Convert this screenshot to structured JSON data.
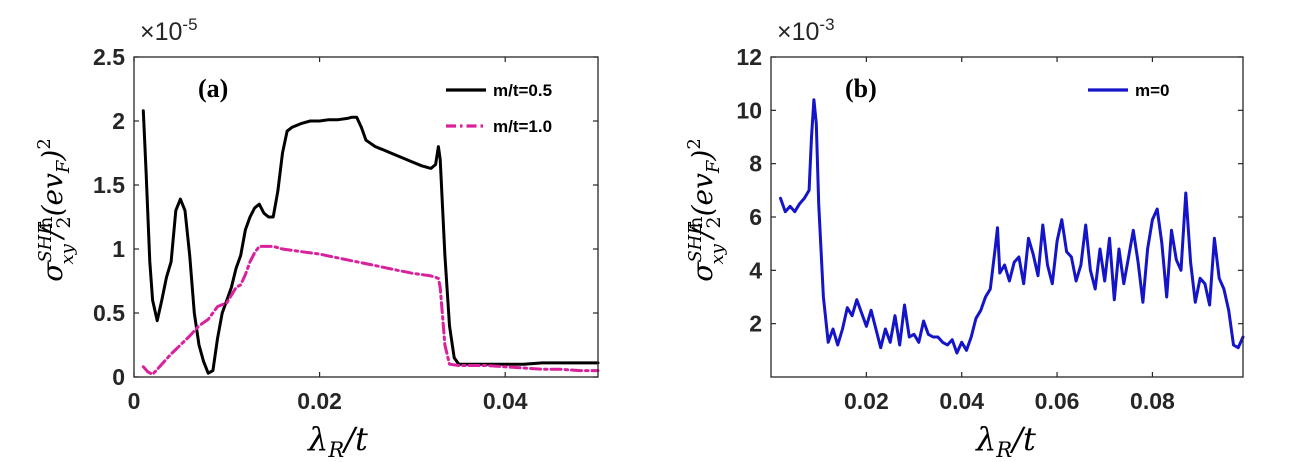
{
  "chart_data": [
    {
      "type": "line",
      "panel_label": "(a)",
      "xlabel": "λR/t",
      "ylabel": "σxy^SHE/(ħ/2)(evF)^2",
      "xlim": [
        0,
        0.05
      ],
      "ylim": [
        0,
        2.5
      ],
      "x_ticks": [
        0,
        0.02,
        0.04
      ],
      "x_tick_labels": [
        "0",
        "0.02",
        "0.04"
      ],
      "y_ticks": [
        0,
        0.5,
        1,
        1.5,
        2,
        2.5
      ],
      "y_tick_labels": [
        "0",
        "0.5",
        "1",
        "1.5",
        "2",
        "2.5"
      ],
      "y_multiplier": {
        "base": "×10",
        "exponent": "-5"
      },
      "grid": false,
      "legend_position": "top-right",
      "series": [
        {
          "name": "m/t=0.5",
          "color": "#000000",
          "style": "solid",
          "x": [
            0.001,
            0.0013,
            0.0017,
            0.002,
            0.0025,
            0.003,
            0.0035,
            0.004,
            0.0045,
            0.005,
            0.0055,
            0.006,
            0.0065,
            0.007,
            0.0075,
            0.008,
            0.0085,
            0.009,
            0.0095,
            0.01,
            0.0105,
            0.011,
            0.0115,
            0.012,
            0.0125,
            0.013,
            0.0135,
            0.014,
            0.0145,
            0.015,
            0.0155,
            0.016,
            0.0165,
            0.017,
            0.018,
            0.019,
            0.02,
            0.021,
            0.022,
            0.023,
            0.0235,
            0.024,
            0.0245,
            0.025,
            0.026,
            0.027,
            0.028,
            0.029,
            0.03,
            0.031,
            0.032,
            0.0325,
            0.0328,
            0.033,
            0.0335,
            0.034,
            0.0345,
            0.035,
            0.036,
            0.038,
            0.04,
            0.042,
            0.044,
            0.046,
            0.048,
            0.05
          ],
          "y": [
            2.08,
            1.6,
            0.9,
            0.6,
            0.44,
            0.6,
            0.78,
            0.9,
            1.3,
            1.39,
            1.3,
            0.95,
            0.5,
            0.25,
            0.12,
            0.03,
            0.05,
            0.3,
            0.5,
            0.6,
            0.7,
            0.85,
            0.95,
            1.15,
            1.25,
            1.32,
            1.35,
            1.28,
            1.25,
            1.25,
            1.45,
            1.75,
            1.92,
            1.95,
            1.98,
            2.0,
            2.0,
            2.01,
            2.01,
            2.02,
            2.03,
            2.03,
            1.95,
            1.85,
            1.8,
            1.77,
            1.74,
            1.71,
            1.68,
            1.65,
            1.63,
            1.66,
            1.8,
            1.7,
            0.95,
            0.4,
            0.15,
            0.1,
            0.1,
            0.1,
            0.1,
            0.1,
            0.11,
            0.11,
            0.11,
            0.11
          ]
        },
        {
          "name": "m/t=1.0",
          "color": "#D9219C",
          "style": "dash-dot",
          "x": [
            0.001,
            0.0015,
            0.002,
            0.003,
            0.004,
            0.005,
            0.006,
            0.007,
            0.008,
            0.009,
            0.01,
            0.011,
            0.0115,
            0.012,
            0.0125,
            0.013,
            0.0135,
            0.014,
            0.015,
            0.016,
            0.018,
            0.02,
            0.022,
            0.024,
            0.026,
            0.028,
            0.03,
            0.032,
            0.0328,
            0.033,
            0.0335,
            0.034,
            0.035,
            0.036,
            0.038,
            0.04,
            0.042,
            0.044,
            0.046,
            0.048,
            0.05
          ],
          "y": [
            0.08,
            0.04,
            0.02,
            0.1,
            0.18,
            0.25,
            0.32,
            0.4,
            0.45,
            0.55,
            0.58,
            0.7,
            0.72,
            0.8,
            0.9,
            0.97,
            1.02,
            1.02,
            1.02,
            1.0,
            0.98,
            0.96,
            0.93,
            0.9,
            0.87,
            0.84,
            0.81,
            0.79,
            0.77,
            0.7,
            0.25,
            0.1,
            0.09,
            0.09,
            0.09,
            0.08,
            0.07,
            0.06,
            0.06,
            0.05,
            0.05
          ]
        }
      ]
    },
    {
      "type": "line",
      "panel_label": "(b)",
      "xlabel": "λR/t",
      "ylabel": "σxy^SHE/(ħ/2)(evF)^2",
      "xlim": [
        0,
        0.099
      ],
      "ylim": [
        0,
        12
      ],
      "x_ticks": [
        0.02,
        0.04,
        0.06,
        0.08
      ],
      "x_tick_labels": [
        "0.02",
        "0.04",
        "0.06",
        "0.08"
      ],
      "y_ticks": [
        2,
        4,
        6,
        8,
        10,
        12
      ],
      "y_tick_labels": [
        "2",
        "4",
        "6",
        "8",
        "10",
        "12"
      ],
      "y_multiplier": {
        "base": "×10",
        "exponent": "-3"
      },
      "grid": false,
      "legend_position": "top-right",
      "series": [
        {
          "name": "m=0",
          "color": "#1414C8",
          "style": "solid",
          "x": [
            0.002,
            0.003,
            0.004,
            0.005,
            0.006,
            0.007,
            0.008,
            0.0085,
            0.009,
            0.0095,
            0.01,
            0.011,
            0.012,
            0.013,
            0.014,
            0.015,
            0.016,
            0.017,
            0.018,
            0.019,
            0.02,
            0.021,
            0.022,
            0.023,
            0.024,
            0.025,
            0.026,
            0.027,
            0.028,
            0.029,
            0.03,
            0.031,
            0.032,
            0.033,
            0.034,
            0.035,
            0.036,
            0.037,
            0.038,
            0.039,
            0.04,
            0.041,
            0.042,
            0.043,
            0.044,
            0.045,
            0.046,
            0.047,
            0.0475,
            0.048,
            0.049,
            0.05,
            0.051,
            0.052,
            0.053,
            0.054,
            0.055,
            0.056,
            0.057,
            0.058,
            0.059,
            0.06,
            0.061,
            0.062,
            0.063,
            0.064,
            0.065,
            0.066,
            0.067,
            0.068,
            0.069,
            0.07,
            0.071,
            0.072,
            0.073,
            0.074,
            0.075,
            0.076,
            0.077,
            0.078,
            0.079,
            0.08,
            0.081,
            0.082,
            0.083,
            0.084,
            0.085,
            0.086,
            0.087,
            0.088,
            0.089,
            0.09,
            0.091,
            0.092,
            0.093,
            0.094,
            0.095,
            0.096,
            0.097,
            0.098,
            0.099
          ],
          "y": [
            6.7,
            6.2,
            6.4,
            6.2,
            6.5,
            6.7,
            7.0,
            9.0,
            10.4,
            9.5,
            6.5,
            3.0,
            1.3,
            1.8,
            1.2,
            1.8,
            2.6,
            2.3,
            2.9,
            2.4,
            1.9,
            2.5,
            1.8,
            1.1,
            1.8,
            1.3,
            2.3,
            1.2,
            2.7,
            1.5,
            1.6,
            1.3,
            2.1,
            1.6,
            1.5,
            1.5,
            1.3,
            1.2,
            1.4,
            0.9,
            1.3,
            1.0,
            1.5,
            2.2,
            2.5,
            3.0,
            3.3,
            4.8,
            5.6,
            3.9,
            4.2,
            3.6,
            4.3,
            4.5,
            3.5,
            5.2,
            4.6,
            3.8,
            5.7,
            4.2,
            3.5,
            5.1,
            5.9,
            4.7,
            4.5,
            3.6,
            4.2,
            5.7,
            4.0,
            3.3,
            4.8,
            3.6,
            5.2,
            2.9,
            4.8,
            3.5,
            4.5,
            5.5,
            4.3,
            2.8,
            4.8,
            5.9,
            6.3,
            5.0,
            3.0,
            5.5,
            4.4,
            4.0,
            6.9,
            4.3,
            2.8,
            3.7,
            3.5,
            2.7,
            5.2,
            3.7,
            3.3,
            2.5,
            1.2,
            1.1,
            1.5
          ]
        }
      ]
    }
  ]
}
